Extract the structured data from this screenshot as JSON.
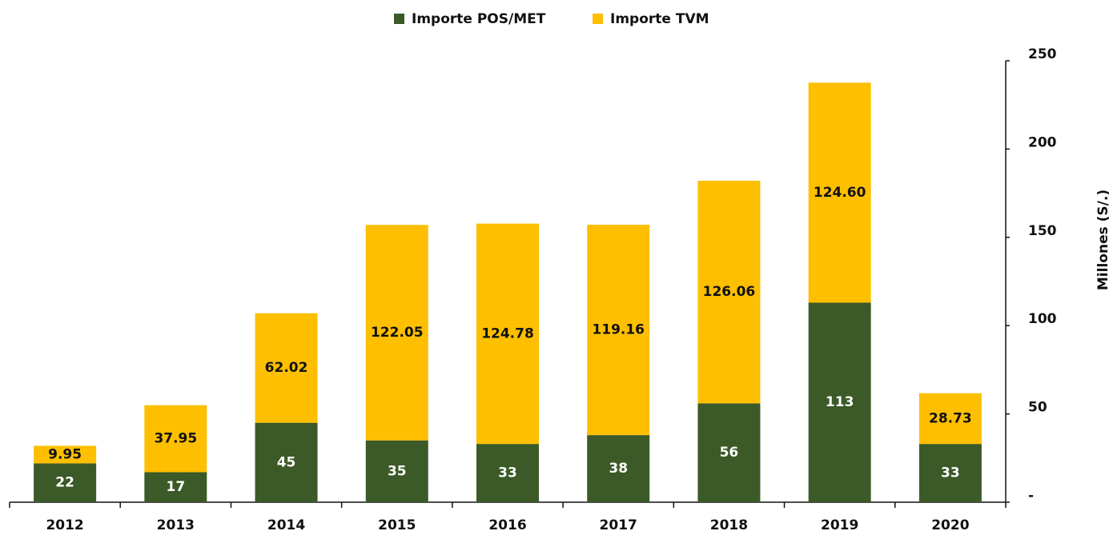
{
  "chart_data": {
    "type": "stacked_bar",
    "categories": [
      "2012",
      "2013",
      "2014",
      "2015",
      "2016",
      "2017",
      "2018",
      "2019",
      "2020"
    ],
    "series": [
      {
        "name": "Importe POS/MET",
        "color": "#3b5a27",
        "label_color": "#ffffff",
        "values": [
          22,
          17,
          45,
          35,
          33,
          38,
          56,
          113,
          33
        ]
      },
      {
        "name": "Importe TVM",
        "color": "#fdbf00",
        "label_color": "#111111",
        "values": [
          9.95,
          37.95,
          62.02,
          122.05,
          124.78,
          119.16,
          126.06,
          124.6,
          28.73
        ],
        "value_labels": [
          "9.95",
          "37.95",
          "62.02",
          "122.05",
          "124.78",
          "119.16",
          "126.06",
          "124.60",
          "28.73"
        ]
      }
    ],
    "y_axis_label": "Millones (S/.)",
    "y_axis_side": "right",
    "ylim": [
      0,
      250
    ],
    "yticks": [
      {
        "value": 0,
        "label": "-"
      },
      50,
      100,
      150,
      200,
      250
    ],
    "legend": "top"
  }
}
